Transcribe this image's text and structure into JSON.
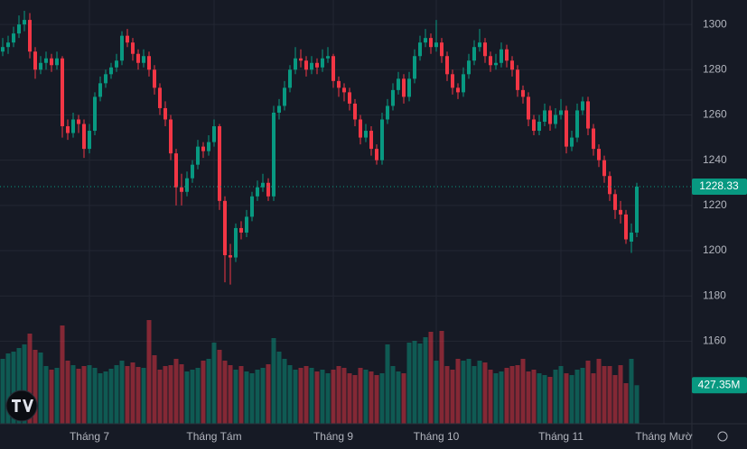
{
  "chart_data": {
    "type": "candlestick",
    "candles": [
      [
        1288,
        1294,
        1286,
        1290
      ],
      [
        1290,
        1295,
        1287,
        1292
      ],
      [
        1292,
        1299,
        1290,
        1296
      ],
      [
        1296,
        1304,
        1294,
        1300
      ],
      [
        1300,
        1306,
        1297,
        1302
      ],
      [
        1302,
        1305,
        1285,
        1288
      ],
      [
        1288,
        1290,
        1276,
        1280
      ],
      [
        1280,
        1286,
        1278,
        1283
      ],
      [
        1283,
        1288,
        1280,
        1285
      ],
      [
        1285,
        1287,
        1279,
        1282
      ],
      [
        1282,
        1288,
        1280,
        1285
      ],
      [
        1285,
        1286,
        1250,
        1255
      ],
      [
        1255,
        1258,
        1249,
        1252
      ],
      [
        1252,
        1261,
        1250,
        1258
      ],
      [
        1258,
        1260,
        1252,
        1256
      ],
      [
        1256,
        1258,
        1241,
        1245
      ],
      [
        1245,
        1256,
        1243,
        1253
      ],
      [
        1253,
        1270,
        1251,
        1268
      ],
      [
        1268,
        1277,
        1266,
        1274
      ],
      [
        1274,
        1280,
        1272,
        1278
      ],
      [
        1278,
        1283,
        1276,
        1281
      ],
      [
        1281,
        1287,
        1279,
        1284
      ],
      [
        1284,
        1297,
        1282,
        1295
      ],
      [
        1295,
        1298,
        1290,
        1292
      ],
      [
        1292,
        1294,
        1284,
        1287
      ],
      [
        1287,
        1289,
        1280,
        1283
      ],
      [
        1283,
        1289,
        1281,
        1286
      ],
      [
        1286,
        1288,
        1277,
        1280
      ],
      [
        1280,
        1282,
        1269,
        1272
      ],
      [
        1272,
        1274,
        1260,
        1263
      ],
      [
        1263,
        1266,
        1255,
        1258
      ],
      [
        1258,
        1260,
        1240,
        1243
      ],
      [
        1243,
        1245,
        1220,
        1228
      ],
      [
        1228,
        1234,
        1220,
        1226
      ],
      [
        1226,
        1235,
        1224,
        1232
      ],
      [
        1232,
        1240,
        1230,
        1238
      ],
      [
        1238,
        1249,
        1236,
        1246
      ],
      [
        1246,
        1248,
        1241,
        1244
      ],
      [
        1244,
        1251,
        1242,
        1248
      ],
      [
        1248,
        1258,
        1246,
        1255
      ],
      [
        1255,
        1256,
        1218,
        1222
      ],
      [
        1222,
        1224,
        1186,
        1198
      ],
      [
        1198,
        1203,
        1185,
        1197
      ],
      [
        1197,
        1212,
        1195,
        1210
      ],
      [
        1210,
        1213,
        1205,
        1208
      ],
      [
        1208,
        1218,
        1206,
        1215
      ],
      [
        1215,
        1226,
        1213,
        1224
      ],
      [
        1224,
        1231,
        1222,
        1228
      ],
      [
        1228,
        1234,
        1226,
        1230
      ],
      [
        1230,
        1232,
        1222,
        1224
      ],
      [
        1224,
        1264,
        1222,
        1261
      ],
      [
        1261,
        1267,
        1258,
        1264
      ],
      [
        1264,
        1275,
        1262,
        1272
      ],
      [
        1272,
        1282,
        1270,
        1280
      ],
      [
        1280,
        1290,
        1278,
        1285
      ],
      [
        1285,
        1289,
        1281,
        1284
      ],
      [
        1284,
        1286,
        1277,
        1280
      ],
      [
        1280,
        1286,
        1278,
        1283
      ],
      [
        1283,
        1285,
        1278,
        1281
      ],
      [
        1281,
        1289,
        1279,
        1285
      ],
      [
        1285,
        1290,
        1283,
        1286
      ],
      [
        1286,
        1287,
        1272,
        1275
      ],
      [
        1275,
        1277,
        1268,
        1272
      ],
      [
        1272,
        1274,
        1266,
        1270
      ],
      [
        1270,
        1272,
        1262,
        1265
      ],
      [
        1265,
        1267,
        1255,
        1258
      ],
      [
        1258,
        1260,
        1247,
        1250
      ],
      [
        1250,
        1256,
        1248,
        1253
      ],
      [
        1253,
        1255,
        1242,
        1245
      ],
      [
        1245,
        1247,
        1238,
        1240
      ],
      [
        1240,
        1261,
        1238,
        1258
      ],
      [
        1258,
        1267,
        1256,
        1264
      ],
      [
        1264,
        1274,
        1262,
        1271
      ],
      [
        1271,
        1279,
        1269,
        1276
      ],
      [
        1276,
        1278,
        1265,
        1268
      ],
      [
        1268,
        1279,
        1266,
        1276
      ],
      [
        1276,
        1289,
        1274,
        1286
      ],
      [
        1286,
        1295,
        1284,
        1292
      ],
      [
        1292,
        1298,
        1290,
        1294
      ],
      [
        1294,
        1296,
        1287,
        1290
      ],
      [
        1290,
        1302,
        1288,
        1292
      ],
      [
        1292,
        1294,
        1283,
        1286
      ],
      [
        1286,
        1288,
        1275,
        1278
      ],
      [
        1278,
        1280,
        1269,
        1272
      ],
      [
        1272,
        1274,
        1267,
        1270
      ],
      [
        1270,
        1281,
        1268,
        1278
      ],
      [
        1278,
        1287,
        1276,
        1284
      ],
      [
        1284,
        1293,
        1282,
        1290
      ],
      [
        1290,
        1298,
        1288,
        1292
      ],
      [
        1292,
        1294,
        1283,
        1286
      ],
      [
        1286,
        1288,
        1279,
        1282
      ],
      [
        1282,
        1287,
        1280,
        1283
      ],
      [
        1283,
        1292,
        1281,
        1289
      ],
      [
        1289,
        1291,
        1281,
        1284
      ],
      [
        1284,
        1286,
        1277,
        1280
      ],
      [
        1280,
        1282,
        1268,
        1271
      ],
      [
        1271,
        1273,
        1265,
        1268
      ],
      [
        1268,
        1270,
        1255,
        1258
      ],
      [
        1258,
        1260,
        1251,
        1253
      ],
      [
        1253,
        1260,
        1251,
        1257
      ],
      [
        1257,
        1265,
        1255,
        1262
      ],
      [
        1262,
        1264,
        1253,
        1256
      ],
      [
        1256,
        1263,
        1254,
        1260
      ],
      [
        1260,
        1267,
        1258,
        1262
      ],
      [
        1262,
        1264,
        1243,
        1246
      ],
      [
        1246,
        1253,
        1244,
        1250
      ],
      [
        1250,
        1265,
        1248,
        1262
      ],
      [
        1262,
        1268,
        1260,
        1266
      ],
      [
        1266,
        1268,
        1251,
        1254
      ],
      [
        1254,
        1256,
        1242,
        1245
      ],
      [
        1245,
        1247,
        1237,
        1240
      ],
      [
        1240,
        1242,
        1230,
        1233
      ],
      [
        1233,
        1235,
        1222,
        1225
      ],
      [
        1225,
        1227,
        1214,
        1218
      ],
      [
        1218,
        1222,
        1212,
        1216
      ],
      [
        1216,
        1218,
        1203,
        1205
      ],
      [
        1204,
        1212,
        1199,
        1208
      ],
      [
        1208,
        1230,
        1206,
        1228.33
      ]
    ],
    "volumes": [
      720,
      780,
      800,
      840,
      880,
      1000,
      820,
      790,
      640,
      600,
      620,
      1090,
      700,
      650,
      610,
      640,
      650,
      620,
      560,
      580,
      610,
      650,
      700,
      640,
      680,
      630,
      620,
      1150,
      760,
      600,
      640,
      650,
      720,
      660,
      580,
      600,
      620,
      700,
      720,
      900,
      820,
      700,
      650,
      600,
      640,
      580,
      560,
      600,
      620,
      660,
      950,
      800,
      720,
      650,
      600,
      620,
      640,
      620,
      580,
      600,
      560,
      600,
      640,
      620,
      560,
      540,
      620,
      600,
      580,
      540,
      560,
      880,
      640,
      580,
      560,
      900,
      920,
      890,
      960,
      1020,
      700,
      1030,
      640,
      600,
      720,
      700,
      720,
      640,
      700,
      680,
      600,
      560,
      580,
      620,
      640,
      650,
      720,
      580,
      600,
      560,
      540,
      520,
      600,
      640,
      560,
      540,
      600,
      620,
      700,
      560,
      720,
      640,
      640,
      540,
      650,
      450,
      720,
      427.35
    ],
    "last_volume_label": "427.35M",
    "up_color": "#089981",
    "down_color": "#f23645",
    "ylim": [
      1123.5,
      1310.8
    ],
    "yticks": [
      1160,
      1180,
      1200,
      1220,
      1240,
      1260,
      1280,
      1300
    ],
    "vlim": [
      0,
      1200
    ],
    "xticks": [
      {
        "value": 16,
        "label": "Tháng 7"
      },
      {
        "value": 39,
        "label": "Tháng Tám"
      },
      {
        "value": 61,
        "label": "Tháng 9"
      },
      {
        "value": 80,
        "label": "Tháng 10"
      },
      {
        "value": 103,
        "label": "Tháng 11"
      },
      {
        "value": 122,
        "label": "Tháng Mườ"
      }
    ],
    "grid": true
  }
}
